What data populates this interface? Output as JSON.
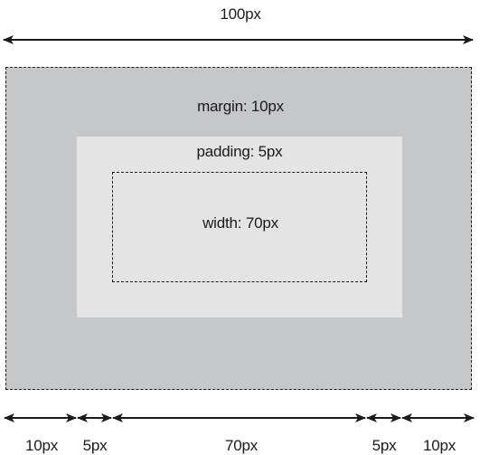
{
  "diagram": {
    "total_width_label": "100px",
    "margin_label": "margin: 10px",
    "padding_label": "padding: 5px",
    "width_label": "width: 70px",
    "segments": [
      "10px",
      "5px",
      "70px",
      "5px",
      "10px"
    ]
  },
  "colors": {
    "margin_fill": "#c6c7c9",
    "padding_fill": "#e4e4e4",
    "stroke": "#1a1a1a"
  }
}
